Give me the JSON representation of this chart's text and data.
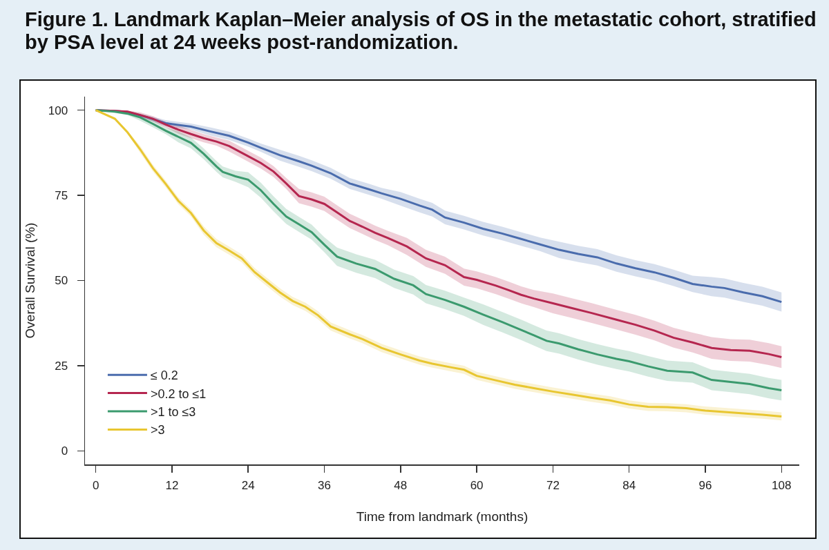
{
  "chart_data": {
    "type": "line",
    "title": "Figure 1. Landmark Kaplan–Meier analysis of OS in the metastatic cohort, stratified by PSA level at 24 weeks post-randomization.",
    "xlabel": "Time from landmark (months)",
    "ylabel": "Overall Survival (%)",
    "xlim": [
      -1.7,
      110.8
    ],
    "xticks": [
      0,
      12,
      24,
      36,
      48,
      60,
      72,
      84,
      96,
      108
    ],
    "ylim": [
      -4,
      104
    ],
    "yticks": [
      0,
      25,
      50,
      75,
      100
    ],
    "legend": "bottom left",
    "series": [
      {
        "name": "≤ 0.2",
        "color": "#4a6cad",
        "x": [
          0,
          3,
          5,
          8,
          11,
          15,
          18,
          21,
          24,
          26,
          29,
          32,
          34,
          37,
          40,
          43,
          45,
          48,
          51,
          53,
          55,
          58,
          61,
          64,
          67,
          70,
          73,
          76,
          79,
          82,
          85,
          88,
          91,
          94,
          97,
          99,
          102,
          105,
          108
        ],
        "values": [
          100,
          99.8,
          99.5,
          98,
          96.2,
          95.2,
          93.8,
          92.5,
          90.5,
          89,
          86.8,
          85,
          83.7,
          81.5,
          78.5,
          76.8,
          75.6,
          74,
          72,
          70.8,
          68.5,
          67,
          65.2,
          63.8,
          62.2,
          60.6,
          59,
          57.8,
          56.8,
          55,
          53.6,
          52.4,
          50.8,
          49,
          48.2,
          47.8,
          46.5,
          45.4,
          43.7
        ],
        "lower": [
          100,
          99.5,
          99.2,
          97.4,
          95.3,
          94.3,
          92.6,
          91.3,
          89.3,
          87.8,
          85.2,
          83.4,
          82.1,
          79.9,
          76.9,
          75.2,
          74,
          72,
          70,
          68.8,
          66.5,
          65,
          63.2,
          61.8,
          60.2,
          58.6,
          56.6,
          55.4,
          54.4,
          52.6,
          51.2,
          50,
          48.4,
          46.6,
          45.4,
          45,
          43.7,
          42.6,
          40.9
        ],
        "upper": [
          100,
          100,
          99.8,
          98.6,
          97.1,
          96.1,
          95,
          93.7,
          91.7,
          90.2,
          88.4,
          86.6,
          85.3,
          83.1,
          80.1,
          78.4,
          77.2,
          76,
          74,
          72.8,
          70.5,
          69,
          67.2,
          65.8,
          64.2,
          62.6,
          61.4,
          60.2,
          59.2,
          57.4,
          56,
          54.8,
          53.2,
          51.4,
          51,
          50.6,
          49.3,
          48.2,
          46.5
        ]
      },
      {
        "name": ">0.2 to ≤1",
        "color": "#b5264f",
        "x": [
          0,
          3,
          5,
          7,
          9,
          11,
          13,
          15,
          17,
          19,
          21,
          24,
          26,
          28,
          30,
          32,
          34,
          36,
          38,
          40,
          42,
          44,
          46,
          49,
          52,
          55,
          58,
          60,
          63,
          65,
          67,
          69,
          72,
          75,
          78,
          82,
          85,
          88,
          91,
          94,
          97,
          100,
          103,
          106,
          108
        ],
        "values": [
          100,
          99.8,
          99.6,
          98.6,
          97.5,
          95.8,
          94.3,
          93,
          91.8,
          90.8,
          89.5,
          86.5,
          84.5,
          82,
          78.5,
          74.8,
          73.8,
          72.5,
          70,
          67.5,
          65.8,
          64,
          62.5,
          60,
          56.5,
          54.5,
          51,
          50.2,
          48.5,
          47.2,
          45.8,
          44.7,
          43.3,
          41.9,
          40.5,
          38.5,
          37,
          35.3,
          33.2,
          31.8,
          30.2,
          29.6,
          29.4,
          28.4,
          27.5
        ],
        "lower": [
          100,
          99.5,
          99.3,
          97.8,
          96.7,
          95,
          93.1,
          91.8,
          90.6,
          89.6,
          87.9,
          84.9,
          82.9,
          80.4,
          76.9,
          72.7,
          71.7,
          70.4,
          67.9,
          65.4,
          63.7,
          61.9,
          60.4,
          57.5,
          54,
          52,
          48.5,
          47.7,
          46,
          44.7,
          43.3,
          42.2,
          40.4,
          39,
          37.6,
          35.6,
          34.1,
          32.4,
          30.3,
          28.9,
          27,
          26.4,
          26.2,
          25.2,
          24.3
        ],
        "upper": [
          100,
          100,
          99.9,
          99.4,
          98.3,
          96.6,
          95.5,
          94.2,
          93,
          92,
          91.1,
          88.1,
          86.1,
          83.6,
          80.1,
          76.9,
          75.9,
          74.6,
          72.1,
          69.6,
          67.9,
          66.1,
          64.6,
          62.5,
          59,
          57,
          53.5,
          52.7,
          51,
          49.7,
          48.3,
          47.2,
          46.2,
          44.8,
          43.4,
          41.4,
          39.9,
          38.2,
          36.1,
          34.7,
          33.4,
          32.8,
          32.6,
          31.6,
          30.7
        ]
      },
      {
        "name": ">1 to ≤3",
        "color": "#3b9a6e",
        "x": [
          0,
          3,
          5,
          7,
          9,
          11,
          13,
          15,
          17,
          19,
          20,
          22,
          24,
          26,
          28,
          30,
          32,
          34,
          36,
          38,
          41,
          44,
          47,
          50,
          52,
          55,
          58,
          61,
          64,
          67,
          69,
          71,
          73,
          76,
          79,
          82,
          84,
          87,
          90,
          94,
          97,
          100,
          103,
          106,
          108
        ],
        "values": [
          100,
          99.6,
          99,
          97.9,
          96,
          94,
          92.2,
          90.4,
          87.2,
          83.5,
          81.9,
          80.6,
          79.6,
          76.5,
          72.5,
          68.8,
          66.5,
          64.2,
          60.5,
          57,
          55,
          53.4,
          50.5,
          48.6,
          46,
          44.3,
          42.3,
          40,
          37.8,
          35.5,
          33.9,
          32.3,
          31.5,
          29.8,
          28.3,
          27,
          26.3,
          24.8,
          23.5,
          23,
          20.8,
          20.2,
          19.6,
          18.4,
          17.8
        ],
        "lower": [
          100,
          99.2,
          98.6,
          96.9,
          95,
          93,
          90.6,
          88.8,
          85.6,
          81.9,
          80.3,
          79,
          77.4,
          74.3,
          70.3,
          66.6,
          64.3,
          62,
          58.3,
          54.3,
          52.3,
          50.7,
          47.8,
          45.9,
          43.3,
          41.6,
          39.6,
          37,
          34.8,
          32.5,
          30.9,
          29.3,
          28.5,
          26.8,
          25.3,
          24,
          23.3,
          21.8,
          20.5,
          20,
          17.8,
          17.2,
          16.6,
          15.4,
          14.8
        ],
        "upper": [
          100,
          100,
          99.4,
          98.9,
          97,
          95,
          93.8,
          92,
          88.8,
          85.1,
          83.5,
          82.2,
          81.8,
          78.7,
          74.7,
          71,
          68.7,
          66.4,
          62.7,
          59.7,
          57.7,
          56.1,
          53.2,
          51.3,
          48.7,
          47,
          45,
          43,
          40.8,
          38.5,
          36.9,
          35.3,
          34.5,
          32.8,
          31.3,
          30,
          29.3,
          27.8,
          26.5,
          26,
          23.8,
          23.2,
          22.6,
          21.4,
          20.8
        ]
      },
      {
        "name": ">3",
        "color": "#e8c630",
        "x": [
          0,
          3,
          5,
          7,
          9,
          11,
          13,
          15,
          17,
          19,
          21,
          23,
          25,
          27,
          29,
          31,
          33,
          35,
          37,
          40,
          42,
          45,
          48,
          51,
          53,
          56,
          58,
          60,
          63,
          66,
          69,
          72,
          75,
          78,
          81,
          84,
          87,
          90,
          93,
          96,
          99,
          102,
          105,
          108
        ],
        "values": [
          100,
          97.5,
          93.5,
          88.5,
          83,
          78.4,
          73.4,
          69.8,
          64.7,
          61,
          58.8,
          56.5,
          52.5,
          49.5,
          46.5,
          44,
          42.3,
          39.8,
          36.5,
          34.2,
          32.8,
          30.2,
          28.3,
          26.5,
          25.6,
          24.5,
          23.8,
          22,
          20.7,
          19.4,
          18.4,
          17.4,
          16.5,
          15.6,
          14.8,
          13.6,
          12.9,
          12.8,
          12.5,
          11.8,
          11.4,
          11,
          10.6,
          10.1
        ],
        "lower": [
          100,
          97.1,
          93.1,
          87.5,
          82,
          77.4,
          72.4,
          68.8,
          63.5,
          59.8,
          57.6,
          55.3,
          51.3,
          48.3,
          45.3,
          42.8,
          41.1,
          38.6,
          35.3,
          33,
          31.6,
          29,
          27.1,
          25.3,
          24.4,
          23.3,
          22.6,
          20.8,
          19.5,
          18.2,
          17.2,
          16.2,
          15.3,
          14.4,
          13.6,
          12.4,
          11.7,
          11.6,
          11.3,
          10.6,
          10.2,
          9.8,
          9.4,
          8.9
        ],
        "upper": [
          100,
          97.9,
          93.9,
          89.5,
          84,
          79.4,
          74.4,
          70.8,
          65.9,
          62.2,
          60,
          57.7,
          53.7,
          50.7,
          47.7,
          45.2,
          43.5,
          41,
          37.7,
          35.4,
          34,
          31.4,
          29.5,
          27.7,
          26.8,
          25.7,
          25,
          23.2,
          21.9,
          20.6,
          19.6,
          18.6,
          17.7,
          16.8,
          16,
          14.8,
          14.1,
          14,
          13.7,
          13,
          12.6,
          12.2,
          11.8,
          11.3
        ]
      }
    ]
  }
}
